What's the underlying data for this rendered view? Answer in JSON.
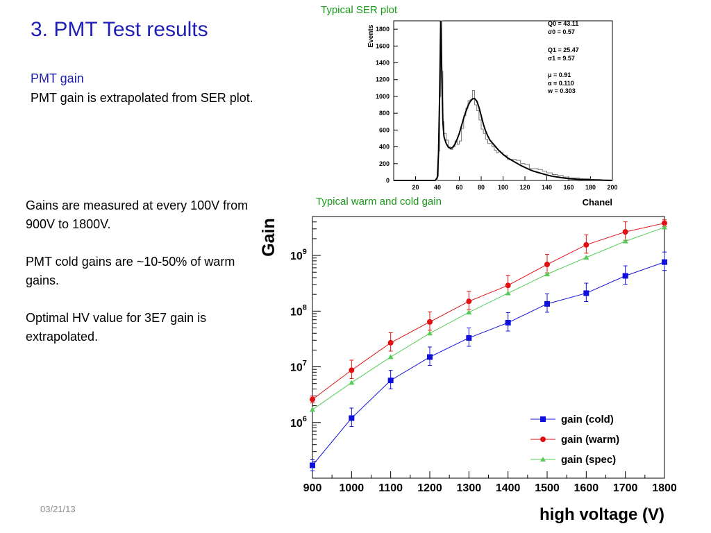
{
  "slide": {
    "title": "3. PMT Test results",
    "subtitle": "PMT gain",
    "intro": "PMT gain is extrapolated from SER plot.",
    "bullets": [
      "Gains are measured at every 100V from 900V to 1800V.",
      "PMT cold gains are ~10-50% of warm gains.",
      "Optimal HV value for 3E7 gain is extrapolated."
    ],
    "date": "03/21/13",
    "ser_caption": "Typical SER plot",
    "gain_caption": "Typical warm and cold gain"
  },
  "chart_data": [
    {
      "type": "line",
      "title": "",
      "xlabel": "Chanel",
      "ylabel": "Events",
      "xlim": [
        0,
        200
      ],
      "ylim": [
        0,
        1900
      ],
      "xticks": [
        20,
        40,
        60,
        80,
        100,
        120,
        140,
        160,
        180,
        200
      ],
      "yticks": [
        0,
        200,
        400,
        600,
        800,
        1000,
        1200,
        1400,
        1600,
        1800
      ],
      "grid": false,
      "fit_params": [
        "Q0 = 43.11",
        "σ0 = 0.57",
        "Q1 = 25.47",
        "σ1 = 9.57",
        "μ = 0.91",
        "α = 0.110",
        "w = 0.303"
      ],
      "series": [
        {
          "x": [
            0,
            38,
            40,
            41,
            42,
            43,
            44,
            45,
            46,
            48,
            50,
            52,
            54,
            56,
            58,
            60,
            62,
            64,
            66,
            68,
            70,
            72,
            74,
            76,
            78,
            80,
            82,
            84,
            86,
            88,
            90,
            92,
            94,
            96,
            98,
            100,
            104,
            108,
            112,
            116,
            120,
            124,
            128,
            132,
            136,
            140,
            145,
            150,
            155,
            160,
            170,
            180,
            190,
            200
          ],
          "values": [
            0,
            0,
            50,
            350,
            1000,
            1900,
            1300,
            700,
            560,
            480,
            400,
            370,
            400,
            470,
            430,
            470,
            620,
            770,
            860,
            950,
            960,
            1070,
            900,
            830,
            720,
            610,
            560,
            490,
            440,
            440,
            400,
            360,
            330,
            350,
            330,
            300,
            250,
            250,
            240,
            200,
            190,
            140,
            140,
            130,
            110,
            90,
            70,
            60,
            40,
            30,
            20,
            10,
            5,
            0
          ]
        },
        {
          "x": [
            0,
            38,
            40,
            41,
            42,
            43,
            44,
            45,
            46,
            48,
            50,
            52,
            54,
            56,
            58,
            60,
            62,
            64,
            66,
            68,
            70,
            72,
            74,
            76,
            78,
            80,
            82,
            84,
            86,
            88,
            90,
            92,
            94,
            96,
            98,
            100,
            104,
            108,
            112,
            116,
            120,
            124,
            128,
            132,
            136,
            140,
            145,
            150,
            155,
            160,
            170,
            180,
            190,
            200
          ],
          "values": [
            0,
            0,
            40,
            330,
            1000,
            1900,
            1280,
            690,
            520,
            440,
            395,
            380,
            395,
            430,
            490,
            560,
            650,
            740,
            820,
            890,
            940,
            970,
            975,
            945,
            870,
            770,
            670,
            590,
            530,
            480,
            450,
            420,
            390,
            360,
            335,
            310,
            270,
            240,
            210,
            180,
            155,
            130,
            110,
            95,
            80,
            65,
            50,
            40,
            30,
            22,
            12,
            7,
            3,
            0
          ]
        }
      ]
    },
    {
      "type": "line",
      "title": "",
      "xlabel": "high voltage (V)",
      "ylabel": "Gain",
      "log_y": true,
      "xlim": [
        900,
        1800
      ],
      "ylim": [
        100000,
        5000000000
      ],
      "xticks": [
        900,
        1000,
        1100,
        1200,
        1300,
        1400,
        1500,
        1600,
        1700,
        1800
      ],
      "yticks": [
        {
          "value": 1000000,
          "base": "10",
          "exp": "6"
        },
        {
          "value": 10000000,
          "base": "10",
          "exp": "7"
        },
        {
          "value": 100000000,
          "base": "10",
          "exp": "8"
        },
        {
          "value": 1000000000,
          "base": "10",
          "exp": "9"
        }
      ],
      "grid": false,
      "legend_position": "bottom-right",
      "x": [
        900,
        1000,
        1100,
        1200,
        1300,
        1400,
        1500,
        1600,
        1700,
        1800
      ],
      "series": [
        {
          "name": "gain (cold)",
          "color": "#1010dd",
          "marker": "square",
          "values": [
            170000,
            1200000,
            5700000,
            15000000,
            33000000,
            62000000,
            135000000,
            210000000,
            430000000,
            760000000
          ],
          "err_up": [
            0.1,
            0.18,
            0.18,
            0.18,
            0.18,
            0.18,
            0.18,
            0.18,
            0.18,
            0.18
          ],
          "err_down": [
            0.1,
            0.15,
            0.15,
            0.15,
            0.15,
            0.15,
            0.15,
            0.15,
            0.15,
            0.15
          ]
        },
        {
          "name": "gain (warm)",
          "color": "#e01010",
          "marker": "circle",
          "values": [
            2600000,
            8700000,
            27000000,
            64000000,
            150000000,
            290000000,
            690000000,
            1550000000,
            2650000000,
            3800000000
          ],
          "err_up": [
            0.06,
            0.18,
            0.18,
            0.18,
            0.18,
            0.18,
            0.18,
            0.18,
            0.18,
            0.06
          ],
          "err_down": [
            0.06,
            0.15,
            0.15,
            0.15,
            0.15,
            0.15,
            0.15,
            0.15,
            0.15,
            0.06
          ]
        },
        {
          "name": "gain (spec)",
          "color": "#55cc55",
          "marker": "triangle",
          "values": [
            1700000,
            5200000,
            15000000,
            40000000,
            95000000,
            210000000,
            460000000,
            920000000,
            1800000000,
            3200000000
          ]
        }
      ]
    }
  ]
}
